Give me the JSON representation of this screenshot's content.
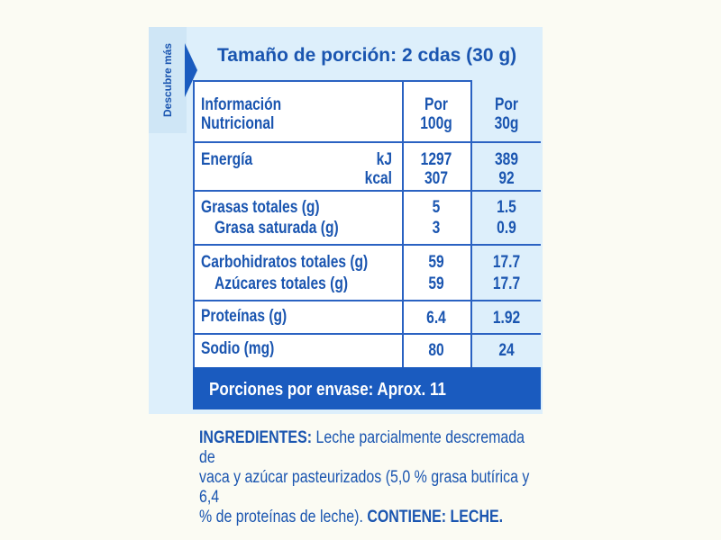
{
  "side_tab": {
    "label": "Descubre más"
  },
  "serving_size": "Tamaño de porción: 2 cdas (30 g)",
  "header": {
    "col1": [
      "Información",
      "Nutricional"
    ],
    "col2": [
      "Por",
      "100g"
    ],
    "col3": [
      "Por",
      "30g"
    ]
  },
  "rows": {
    "energy": {
      "label": "Energía",
      "unit_kj": "kJ",
      "unit_kcal": "kcal",
      "per100_kj": "1297",
      "per100_kcal": "307",
      "per30_kj": "389",
      "per30_kcal": "92"
    },
    "fat": {
      "label": "Grasas totales (g)",
      "per100": "5",
      "per30": "1.5"
    },
    "sat_fat": {
      "label": "Grasa saturada (g)",
      "per100": "3",
      "per30": "0.9"
    },
    "carbs": {
      "label": "Carbohidratos totales (g)",
      "per100": "59",
      "per30": "17.7"
    },
    "sugars": {
      "label": "Azúcares totales (g)",
      "per100": "59",
      "per30": "17.7"
    },
    "protein": {
      "label": "Proteínas (g)",
      "per100": "6.4",
      "per30": "1.92"
    },
    "sodium": {
      "label": "Sodio (mg)",
      "per100": "80",
      "per30": "24"
    }
  },
  "portions": "Porciones por envase: Aprox. 11",
  "ingredients": {
    "heading": "INGREDIENTES:",
    "line1": "Leche parcialmente descremada de",
    "line2": "vaca y azúcar pasteurizados (5,0 % grasa butírica y 6,4",
    "line3": "% de proteínas de leche).",
    "contains_label": "CONTIENE: LECHE."
  },
  "colors": {
    "accent": "#1a5bbf",
    "text": "#1a55b0",
    "panel": "#ddeffb",
    "background": "#fbfbf3"
  }
}
